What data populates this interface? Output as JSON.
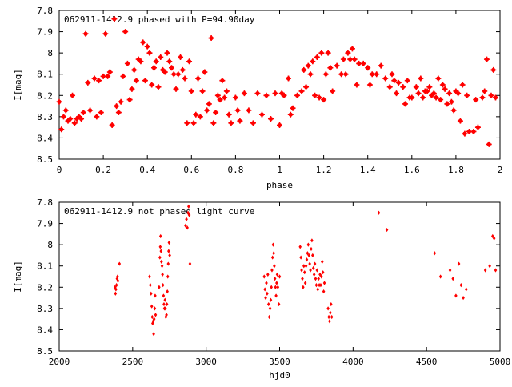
{
  "colors": {
    "points": "#ff0000",
    "axes": "#000000",
    "background": "#ffffff"
  },
  "chart_data": [
    {
      "type": "scatter",
      "title": "062911-1412.9 phased with P=94.90day",
      "xlabel": "phase",
      "ylabel": "I[mag]",
      "xlim": [
        0,
        2
      ],
      "ylim": [
        7.8,
        8.5
      ],
      "y_inverted": true,
      "grid": false,
      "xticks": [
        "0",
        "0.2",
        "0.4",
        "0.6",
        "0.8",
        "1",
        "1.2",
        "1.4",
        "1.6",
        "1.8",
        "2"
      ],
      "yticks": [
        "7.8",
        "7.9",
        "8",
        "8.1",
        "8.2",
        "8.3",
        "8.4",
        "8.5"
      ],
      "points": [
        [
          0.0,
          8.23
        ],
        [
          0.01,
          8.36
        ],
        [
          0.02,
          8.3
        ],
        [
          0.03,
          8.27
        ],
        [
          0.04,
          8.32
        ],
        [
          0.05,
          8.31
        ],
        [
          0.06,
          8.2
        ],
        [
          0.07,
          8.33
        ],
        [
          0.08,
          8.31
        ],
        [
          0.09,
          8.3
        ],
        [
          0.1,
          8.31
        ],
        [
          0.11,
          8.28
        ],
        [
          0.12,
          7.91
        ],
        [
          0.13,
          8.14
        ],
        [
          0.14,
          8.27
        ],
        [
          0.16,
          8.12
        ],
        [
          0.17,
          8.3
        ],
        [
          0.18,
          8.13
        ],
        [
          0.19,
          8.28
        ],
        [
          0.2,
          8.11
        ],
        [
          0.21,
          7.91
        ],
        [
          0.22,
          8.11
        ],
        [
          0.23,
          8.09
        ],
        [
          0.24,
          8.34
        ],
        [
          0.25,
          7.84
        ],
        [
          0.26,
          8.25
        ],
        [
          0.27,
          8.28
        ],
        [
          0.28,
          8.23
        ],
        [
          0.29,
          8.11
        ],
        [
          0.3,
          7.9
        ],
        [
          0.31,
          8.05
        ],
        [
          0.32,
          8.22
        ],
        [
          0.33,
          8.17
        ],
        [
          0.34,
          8.08
        ],
        [
          0.35,
          8.13
        ],
        [
          0.36,
          8.03
        ],
        [
          0.37,
          8.04
        ],
        [
          0.38,
          7.95
        ],
        [
          0.39,
          8.13
        ],
        [
          0.4,
          7.97
        ],
        [
          0.41,
          8.0
        ],
        [
          0.42,
          8.15
        ],
        [
          0.43,
          8.07
        ],
        [
          0.44,
          8.04
        ],
        [
          0.45,
          8.16
        ],
        [
          0.46,
          8.02
        ],
        [
          0.47,
          8.08
        ],
        [
          0.48,
          8.09
        ],
        [
          0.49,
          8.0
        ],
        [
          0.5,
          8.04
        ],
        [
          0.51,
          8.07
        ],
        [
          0.52,
          8.1
        ],
        [
          0.53,
          8.17
        ],
        [
          0.54,
          8.1
        ],
        [
          0.55,
          8.02
        ],
        [
          0.56,
          8.08
        ],
        [
          0.57,
          8.12
        ],
        [
          0.58,
          8.33
        ],
        [
          0.59,
          8.04
        ],
        [
          0.6,
          8.18
        ],
        [
          0.61,
          8.33
        ],
        [
          0.62,
          8.29
        ],
        [
          0.63,
          8.12
        ],
        [
          0.64,
          8.3
        ],
        [
          0.65,
          8.18
        ],
        [
          0.66,
          8.09
        ],
        [
          0.67,
          8.27
        ],
        [
          0.68,
          8.24
        ],
        [
          0.69,
          7.93
        ],
        [
          0.7,
          8.33
        ],
        [
          0.71,
          8.28
        ],
        [
          0.72,
          8.2
        ],
        [
          0.73,
          8.22
        ],
        [
          0.74,
          8.13
        ],
        [
          0.75,
          8.21
        ],
        [
          0.76,
          8.18
        ],
        [
          0.77,
          8.29
        ],
        [
          0.78,
          8.33
        ],
        [
          0.8,
          8.21
        ],
        [
          0.81,
          8.27
        ],
        [
          0.82,
          8.32
        ],
        [
          0.84,
          8.19
        ],
        [
          0.86,
          8.27
        ],
        [
          0.88,
          8.33
        ],
        [
          0.9,
          8.19
        ],
        [
          0.92,
          8.29
        ],
        [
          0.94,
          8.2
        ],
        [
          0.96,
          8.31
        ],
        [
          0.98,
          8.19
        ],
        [
          1.0,
          8.34
        ],
        [
          1.01,
          8.19
        ],
        [
          1.02,
          8.2
        ],
        [
          1.04,
          8.12
        ],
        [
          1.05,
          8.29
        ],
        [
          1.06,
          8.26
        ],
        [
          1.08,
          8.2
        ],
        [
          1.1,
          8.18
        ],
        [
          1.11,
          8.08
        ],
        [
          1.12,
          8.16
        ],
        [
          1.13,
          8.06
        ],
        [
          1.14,
          8.1
        ],
        [
          1.15,
          8.04
        ],
        [
          1.16,
          8.2
        ],
        [
          1.17,
          8.02
        ],
        [
          1.18,
          8.21
        ],
        [
          1.19,
          8.0
        ],
        [
          1.2,
          8.22
        ],
        [
          1.21,
          8.1
        ],
        [
          1.22,
          8.0
        ],
        [
          1.23,
          8.07
        ],
        [
          1.24,
          8.18
        ],
        [
          1.26,
          8.06
        ],
        [
          1.28,
          8.1
        ],
        [
          1.29,
          8.03
        ],
        [
          1.3,
          8.1
        ],
        [
          1.31,
          8.0
        ],
        [
          1.32,
          8.03
        ],
        [
          1.33,
          7.98
        ],
        [
          1.34,
          8.03
        ],
        [
          1.35,
          8.15
        ],
        [
          1.36,
          8.05
        ],
        [
          1.38,
          8.05
        ],
        [
          1.4,
          8.07
        ],
        [
          1.41,
          8.15
        ],
        [
          1.42,
          8.1
        ],
        [
          1.44,
          8.1
        ],
        [
          1.46,
          8.06
        ],
        [
          1.48,
          8.12
        ],
        [
          1.5,
          8.16
        ],
        [
          1.51,
          8.1
        ],
        [
          1.52,
          8.13
        ],
        [
          1.53,
          8.19
        ],
        [
          1.54,
          8.14
        ],
        [
          1.56,
          8.16
        ],
        [
          1.57,
          8.24
        ],
        [
          1.58,
          8.13
        ],
        [
          1.59,
          8.21
        ],
        [
          1.6,
          8.21
        ],
        [
          1.62,
          8.16
        ],
        [
          1.63,
          8.19
        ],
        [
          1.64,
          8.12
        ],
        [
          1.65,
          8.21
        ],
        [
          1.66,
          8.18
        ],
        [
          1.67,
          8.18
        ],
        [
          1.68,
          8.16
        ],
        [
          1.69,
          8.2
        ],
        [
          1.7,
          8.19
        ],
        [
          1.71,
          8.21
        ],
        [
          1.72,
          8.12
        ],
        [
          1.73,
          8.22
        ],
        [
          1.74,
          8.15
        ],
        [
          1.75,
          8.17
        ],
        [
          1.76,
          8.24
        ],
        [
          1.77,
          8.19
        ],
        [
          1.78,
          8.23
        ],
        [
          1.79,
          8.27
        ],
        [
          1.8,
          8.18
        ],
        [
          1.81,
          8.19
        ],
        [
          1.82,
          8.32
        ],
        [
          1.83,
          8.15
        ],
        [
          1.84,
          8.38
        ],
        [
          1.85,
          8.2
        ],
        [
          1.86,
          8.37
        ],
        [
          1.88,
          8.37
        ],
        [
          1.89,
          8.22
        ],
        [
          1.9,
          8.35
        ],
        [
          1.92,
          8.21
        ],
        [
          1.93,
          8.18
        ],
        [
          1.94,
          8.03
        ],
        [
          1.95,
          8.43
        ],
        [
          1.96,
          8.2
        ],
        [
          1.97,
          8.08
        ],
        [
          1.98,
          8.21
        ]
      ]
    },
    {
      "type": "scatter",
      "title": "062911-1412.9 not phased light curve",
      "xlabel": "hjd0",
      "ylabel": "I[mag]",
      "xlim": [
        2000,
        5000
      ],
      "ylim": [
        7.8,
        8.5
      ],
      "y_inverted": true,
      "grid": false,
      "xticks": [
        "2000",
        "2500",
        "3000",
        "3500",
        "4000",
        "4500",
        "5000"
      ],
      "yticks": [
        "7.8",
        "7.9",
        "8",
        "8.1",
        "8.2",
        "8.3",
        "8.4",
        "8.5"
      ],
      "points": [
        [
          2380,
          8.2
        ],
        [
          2383,
          8.23
        ],
        [
          2386,
          8.21
        ],
        [
          2390,
          8.19
        ],
        [
          2394,
          8.16
        ],
        [
          2397,
          8.15
        ],
        [
          2400,
          8.17
        ],
        [
          2410,
          8.09
        ],
        [
          2615,
          8.15
        ],
        [
          2620,
          8.19
        ],
        [
          2625,
          8.23
        ],
        [
          2630,
          8.29
        ],
        [
          2633,
          8.34
        ],
        [
          2636,
          8.37
        ],
        [
          2640,
          8.36
        ],
        [
          2643,
          8.42
        ],
        [
          2646,
          8.35
        ],
        [
          2650,
          8.3
        ],
        [
          2653,
          8.24
        ],
        [
          2656,
          8.33
        ],
        [
          2680,
          8.2
        ],
        [
          2685,
          8.06
        ],
        [
          2688,
          8.01
        ],
        [
          2690,
          7.96
        ],
        [
          2693,
          8.03
        ],
        [
          2696,
          8.08
        ],
        [
          2700,
          8.1
        ],
        [
          2703,
          8.14
        ],
        [
          2706,
          8.19
        ],
        [
          2710,
          8.24
        ],
        [
          2713,
          8.28
        ],
        [
          2716,
          8.3
        ],
        [
          2720,
          8.26
        ],
        [
          2723,
          8.3
        ],
        [
          2726,
          8.34
        ],
        [
          2730,
          8.33
        ],
        [
          2733,
          8.28
        ],
        [
          2736,
          8.22
        ],
        [
          2739,
          8.15
        ],
        [
          2742,
          8.09
        ],
        [
          2745,
          8.03
        ],
        [
          2748,
          7.99
        ],
        [
          2752,
          8.05
        ],
        [
          2860,
          7.91
        ],
        [
          2866,
          7.88
        ],
        [
          2872,
          7.92
        ],
        [
          2877,
          7.85
        ],
        [
          2881,
          7.82
        ],
        [
          2885,
          7.86
        ],
        [
          2890,
          8.09
        ],
        [
          3395,
          8.15
        ],
        [
          3400,
          8.21
        ],
        [
          3405,
          8.25
        ],
        [
          3410,
          8.18
        ],
        [
          3415,
          8.23
        ],
        [
          3420,
          8.14
        ],
        [
          3425,
          8.28
        ],
        [
          3430,
          8.34
        ],
        [
          3435,
          8.3
        ],
        [
          3440,
          8.26
        ],
        [
          3444,
          8.2
        ],
        [
          3448,
          8.12
        ],
        [
          3452,
          8.06
        ],
        [
          3456,
          8.0
        ],
        [
          3460,
          8.04
        ],
        [
          3464,
          8.1
        ],
        [
          3468,
          8.16
        ],
        [
          3472,
          8.2
        ],
        [
          3476,
          8.24
        ],
        [
          3480,
          8.18
        ],
        [
          3484,
          8.14
        ],
        [
          3488,
          8.2
        ],
        [
          3495,
          8.28
        ],
        [
          3500,
          8.15
        ],
        [
          3640,
          8.01
        ],
        [
          3645,
          8.06
        ],
        [
          3650,
          8.12
        ],
        [
          3655,
          8.16
        ],
        [
          3660,
          8.2
        ],
        [
          3665,
          8.1
        ],
        [
          3670,
          8.13
        ],
        [
          3675,
          8.18
        ],
        [
          3680,
          8.1
        ],
        [
          3685,
          8.07
        ],
        [
          3690,
          8.04
        ],
        [
          3695,
          8.0
        ],
        [
          3700,
          8.05
        ],
        [
          3705,
          8.09
        ],
        [
          3710,
          8.12
        ],
        [
          3715,
          8.02
        ],
        [
          3720,
          7.98
        ],
        [
          3725,
          8.05
        ],
        [
          3730,
          8.11
        ],
        [
          3735,
          8.14
        ],
        [
          3740,
          8.09
        ],
        [
          3745,
          8.16
        ],
        [
          3750,
          8.19
        ],
        [
          3755,
          8.12
        ],
        [
          3760,
          8.21
        ],
        [
          3765,
          8.16
        ],
        [
          3770,
          8.19
        ],
        [
          3775,
          8.14
        ],
        [
          3780,
          8.19
        ],
        [
          3785,
          8.15
        ],
        [
          3790,
          8.08
        ],
        [
          3795,
          8.13
        ],
        [
          3800,
          8.22
        ],
        [
          3805,
          8.18
        ],
        [
          3830,
          8.3
        ],
        [
          3835,
          8.34
        ],
        [
          3840,
          8.36
        ],
        [
          3845,
          8.32
        ],
        [
          3850,
          8.28
        ],
        [
          3855,
          8.34
        ],
        [
          4175,
          7.85
        ],
        [
          4230,
          7.93
        ],
        [
          4555,
          8.04
        ],
        [
          4595,
          8.15
        ],
        [
          4660,
          8.12
        ],
        [
          4680,
          8.16
        ],
        [
          4700,
          8.24
        ],
        [
          4720,
          8.09
        ],
        [
          4735,
          8.19
        ],
        [
          4750,
          8.25
        ],
        [
          4770,
          8.21
        ],
        [
          4900,
          8.12
        ],
        [
          4930,
          8.1
        ],
        [
          4950,
          7.96
        ],
        [
          4960,
          7.97
        ],
        [
          4970,
          8.12
        ]
      ]
    }
  ]
}
